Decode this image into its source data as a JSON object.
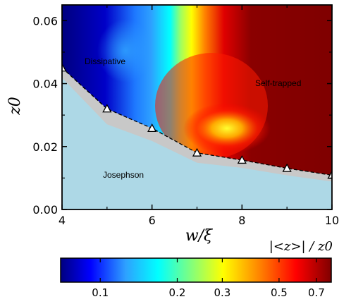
{
  "chart_data": {
    "type": "heatmap",
    "xlabel": "w/ξ",
    "ylabel": "z0",
    "xlim": [
      4,
      10
    ],
    "ylim": [
      0,
      0.065
    ],
    "xticks": [
      4,
      6,
      8,
      10
    ],
    "xtick_labels": [
      "4",
      "6",
      "8",
      "10"
    ],
    "yticks": [
      0,
      0.02,
      0.04,
      0.06
    ],
    "ytick_labels": [
      "0.00",
      "0.02",
      "0.04",
      "0.06"
    ],
    "regions": [
      {
        "label": "Dissipative",
        "color": "#ffffff"
      },
      {
        "label": "Self-trapped",
        "color": "#ffffff"
      },
      {
        "label": "Josephson",
        "color": "#000000"
      }
    ],
    "boundary_points": [
      {
        "x": 4,
        "y": 0.045
      },
      {
        "x": 5,
        "y": 0.032
      },
      {
        "x": 6,
        "y": 0.0258
      },
      {
        "x": 7,
        "y": 0.018
      },
      {
        "x": 8,
        "y": 0.0157
      },
      {
        "x": 9,
        "y": 0.0131
      },
      {
        "x": 10,
        "y": 0.0109
      }
    ],
    "colorbar": {
      "title": "|<z>| / z0",
      "scale": "log",
      "range": [
        0.07,
        0.8
      ],
      "ticks": [
        0.1,
        0.2,
        0.3,
        0.5,
        0.7
      ],
      "tick_labels": [
        "0.1",
        "0.2",
        "0.3",
        "0.5",
        "0.7"
      ]
    },
    "colors": {
      "josephson_fill": "#add8e6",
      "transition_band": "#c8c8c8"
    }
  }
}
